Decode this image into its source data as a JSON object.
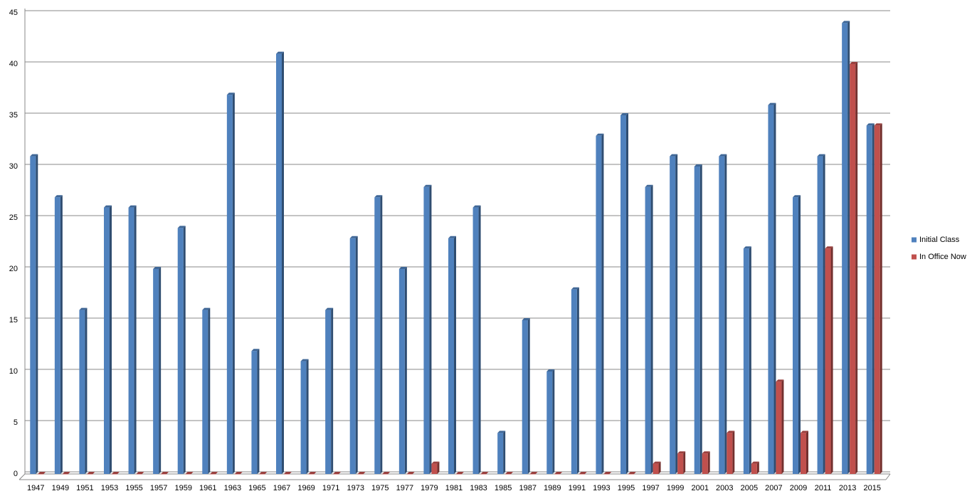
{
  "chart_data": {
    "type": "bar",
    "categories": [
      "1947",
      "1949",
      "1951",
      "1953",
      "1955",
      "1957",
      "1959",
      "1961",
      "1963",
      "1965",
      "1967",
      "1969",
      "1971",
      "1973",
      "1975",
      "1977",
      "1979",
      "1981",
      "1983",
      "1985",
      "1987",
      "1989",
      "1991",
      "1993",
      "1995",
      "1997",
      "1999",
      "2001",
      "2003",
      "2005",
      "2007",
      "2009",
      "2011",
      "2013",
      "2015"
    ],
    "series": [
      {
        "name": "Initial Class",
        "color": "#4f81bd",
        "values": [
          31,
          27,
          16,
          26,
          26,
          20,
          24,
          16,
          37,
          12,
          41,
          11,
          16,
          23,
          27,
          20,
          28,
          23,
          26,
          4,
          15,
          10,
          18,
          33,
          35,
          28,
          31,
          30,
          31,
          22,
          36,
          27,
          31,
          44,
          34
        ]
      },
      {
        "name": "In Office Now",
        "color": "#c0504d",
        "values": [
          0,
          0,
          0,
          0,
          0,
          0,
          0,
          0,
          0,
          0,
          0,
          0,
          0,
          0,
          0,
          0,
          1,
          0,
          0,
          0,
          0,
          0,
          0,
          0,
          0,
          1,
          2,
          2,
          4,
          1,
          9,
          4,
          22,
          40,
          34
        ]
      }
    ],
    "ylim": [
      0,
      45
    ],
    "yticks": [
      0,
      5,
      10,
      15,
      20,
      25,
      30,
      35,
      40,
      45
    ],
    "grid": true,
    "legend": "right"
  }
}
